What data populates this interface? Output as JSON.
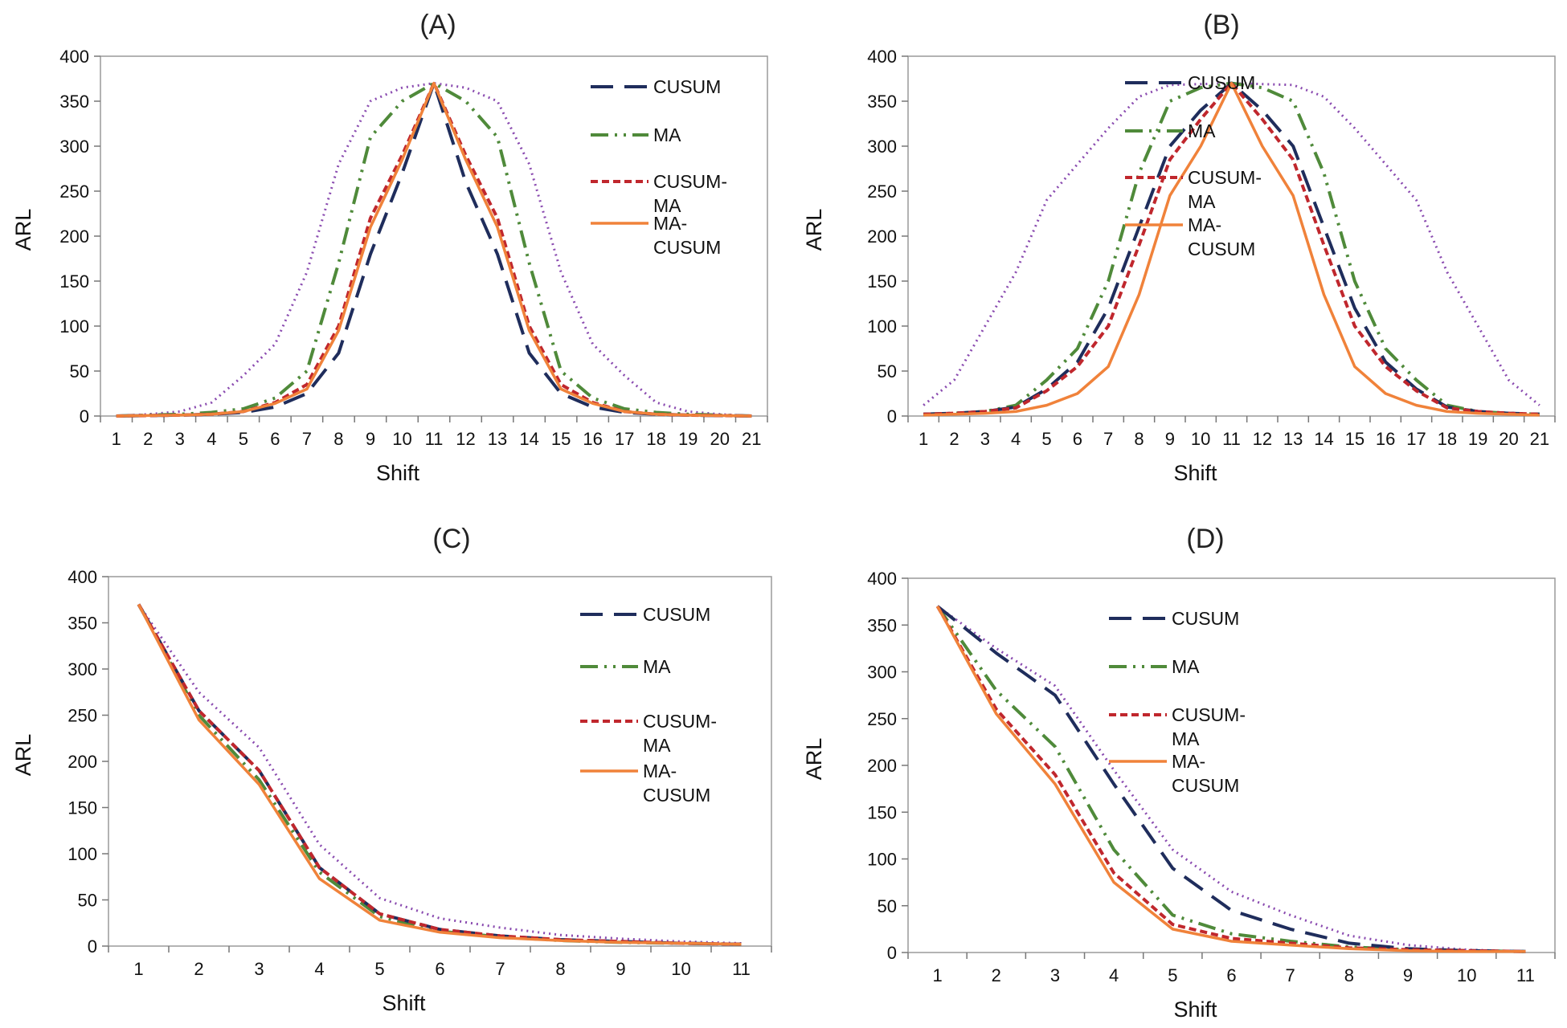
{
  "styles": {
    "CUSUM": {
      "color": "#1f2d5c",
      "dash": "28,14",
      "width": 4
    },
    "MA": {
      "color": "#4f8a3a",
      "dash": "22,8,3,8,3,8",
      "width": 4
    },
    "CUSUM-MA": {
      "color": "#c0272d",
      "dash": "9,5",
      "width": 4
    },
    "MA-CUSUM": {
      "color": "#f0823a",
      "dash": "",
      "width": 3.5
    },
    "Unlabeled": {
      "color": "#8a4bb0",
      "dash": "2,5",
      "width": 3
    }
  },
  "chart_data": [
    {
      "type": "line",
      "title": "(A)",
      "xlabel": "Shift",
      "ylabel": "ARL",
      "ylim": [
        0,
        400
      ],
      "yticks": [
        0,
        50,
        100,
        150,
        200,
        250,
        300,
        350,
        400
      ],
      "grid": false,
      "legend": "top-right",
      "categories": [
        "1",
        "2",
        "3",
        "4",
        "5",
        "6",
        "7",
        "8",
        "9",
        "10",
        "11",
        "12",
        "13",
        "14",
        "15",
        "16",
        "17",
        "18",
        "19",
        "20",
        "21"
      ],
      "series": [
        {
          "name": "CUSUM",
          "label": [
            "CUSUM"
          ],
          "values": [
            0,
            0.5,
            1,
            2,
            4,
            10,
            25,
            70,
            180,
            270,
            370,
            260,
            180,
            70,
            25,
            10,
            4,
            2,
            1,
            0.5,
            0
          ]
        },
        {
          "name": "MA",
          "label": [
            "MA"
          ],
          "values": [
            0,
            1,
            2,
            4,
            8,
            20,
            50,
            170,
            310,
            350,
            370,
            350,
            310,
            170,
            50,
            20,
            8,
            4,
            2,
            1,
            0
          ]
        },
        {
          "name": "CUSUM-MA",
          "label": [
            "CUSUM-",
            "MA"
          ],
          "values": [
            0,
            0.5,
            1,
            2,
            5,
            15,
            35,
            100,
            220,
            290,
            370,
            290,
            220,
            100,
            35,
            15,
            5,
            2,
            1,
            0.5,
            0
          ]
        },
        {
          "name": "MA-CUSUM",
          "label": [
            "MA-",
            "CUSUM"
          ],
          "values": [
            0,
            0.5,
            1,
            2,
            5,
            14,
            30,
            95,
            210,
            285,
            370,
            285,
            210,
            95,
            30,
            14,
            5,
            2,
            1,
            0.5,
            0
          ]
        },
        {
          "name": "Unlabeled",
          "label": [],
          "values": [
            0,
            2,
            5,
            15,
            45,
            80,
            160,
            280,
            350,
            365,
            370,
            365,
            350,
            280,
            160,
            80,
            45,
            15,
            5,
            2,
            0
          ]
        }
      ]
    },
    {
      "type": "line",
      "title": "(B)",
      "xlabel": "Shift",
      "ylabel": "ARL",
      "ylim": [
        0,
        400
      ],
      "yticks": [
        0,
        50,
        100,
        150,
        200,
        250,
        300,
        350,
        400
      ],
      "grid": false,
      "legend": "top-right",
      "categories": [
        "1",
        "2",
        "3",
        "4",
        "5",
        "6",
        "7",
        "8",
        "9",
        "10",
        "11",
        "12",
        "13",
        "14",
        "15",
        "16",
        "17",
        "18",
        "19",
        "20",
        "21"
      ],
      "series": [
        {
          "name": "CUSUM",
          "label": [
            "CUSUM"
          ],
          "values": [
            2,
            3,
            5,
            10,
            30,
            60,
            120,
            210,
            300,
            340,
            370,
            340,
            300,
            210,
            120,
            60,
            30,
            10,
            5,
            3,
            2
          ]
        },
        {
          "name": "MA",
          "label": [
            "MA"
          ],
          "values": [
            2,
            3,
            5,
            12,
            40,
            75,
            150,
            270,
            350,
            365,
            370,
            365,
            350,
            270,
            150,
            75,
            40,
            12,
            5,
            3,
            2
          ]
        },
        {
          "name": "CUSUM-MA",
          "label": [
            "CUSUM-",
            "MA"
          ],
          "values": [
            2,
            3,
            5,
            9,
            28,
            55,
            100,
            190,
            285,
            330,
            370,
            330,
            285,
            190,
            100,
            55,
            28,
            9,
            5,
            3,
            2
          ]
        },
        {
          "name": "MA-CUSUM",
          "label": [
            "MA-",
            "CUSUM"
          ],
          "values": [
            1,
            2,
            3,
            5,
            12,
            25,
            55,
            135,
            245,
            300,
            370,
            300,
            245,
            135,
            55,
            25,
            12,
            5,
            3,
            2,
            1
          ]
        },
        {
          "name": "Unlabeled",
          "label": [],
          "values": [
            12,
            40,
            100,
            160,
            240,
            280,
            320,
            355,
            368,
            369,
            370,
            369,
            368,
            355,
            320,
            280,
            240,
            160,
            100,
            40,
            12
          ]
        }
      ]
    },
    {
      "type": "line",
      "title": "(C)",
      "xlabel": "Shift",
      "ylabel": "ARL",
      "ylim": [
        0,
        400
      ],
      "yticks": [
        0,
        50,
        100,
        150,
        200,
        250,
        300,
        350,
        400
      ],
      "grid": false,
      "legend": "top-right",
      "categories": [
        "1",
        "2",
        "3",
        "4",
        "5",
        "6",
        "7",
        "8",
        "9",
        "10",
        "11"
      ],
      "series": [
        {
          "name": "CUSUM",
          "label": [
            "CUSUM"
          ],
          "values": [
            370,
            255,
            190,
            85,
            35,
            18,
            11,
            7,
            5,
            3,
            2
          ]
        },
        {
          "name": "MA",
          "label": [
            "MA"
          ],
          "values": [
            370,
            250,
            180,
            80,
            32,
            16,
            10,
            6,
            4,
            3,
            2
          ]
        },
        {
          "name": "CUSUM-MA",
          "label": [
            "CUSUM-",
            "MA"
          ],
          "values": [
            370,
            255,
            190,
            85,
            35,
            18,
            11,
            7,
            5,
            3,
            2
          ]
        },
        {
          "name": "MA-CUSUM",
          "label": [
            "MA-",
            "CUSUM"
          ],
          "values": [
            370,
            245,
            175,
            73,
            28,
            15,
            9,
            6,
            4,
            3,
            2
          ]
        },
        {
          "name": "Unlabeled",
          "label": [],
          "values": [
            370,
            275,
            215,
            110,
            52,
            30,
            20,
            12,
            8,
            5,
            3
          ]
        }
      ]
    },
    {
      "type": "line",
      "title": "(D)",
      "xlabel": "Shift",
      "ylabel": "ARL",
      "ylim": [
        0,
        400
      ],
      "yticks": [
        0,
        50,
        100,
        150,
        200,
        250,
        300,
        350,
        400
      ],
      "grid": false,
      "legend": "top-right",
      "categories": [
        "1",
        "2",
        "3",
        "4",
        "5",
        "6",
        "7",
        "8",
        "9",
        "10",
        "11"
      ],
      "series": [
        {
          "name": "CUSUM",
          "label": [
            "CUSUM"
          ],
          "values": [
            370,
            320,
            275,
            180,
            90,
            45,
            25,
            10,
            4,
            2,
            1
          ]
        },
        {
          "name": "MA",
          "label": [
            "MA"
          ],
          "values": [
            370,
            280,
            220,
            110,
            40,
            20,
            12,
            6,
            3,
            2,
            1
          ]
        },
        {
          "name": "CUSUM-MA",
          "label": [
            "CUSUM-",
            "MA"
          ],
          "values": [
            370,
            260,
            190,
            85,
            30,
            15,
            10,
            5,
            3,
            2,
            1
          ]
        },
        {
          "name": "MA-CUSUM",
          "label": [
            "MA-",
            "CUSUM"
          ],
          "values": [
            370,
            255,
            180,
            75,
            25,
            12,
            8,
            4,
            2,
            1,
            1
          ]
        },
        {
          "name": "Unlabeled",
          "label": [],
          "values": [
            370,
            325,
            285,
            195,
            110,
            65,
            40,
            18,
            8,
            3,
            1
          ]
        }
      ]
    }
  ]
}
